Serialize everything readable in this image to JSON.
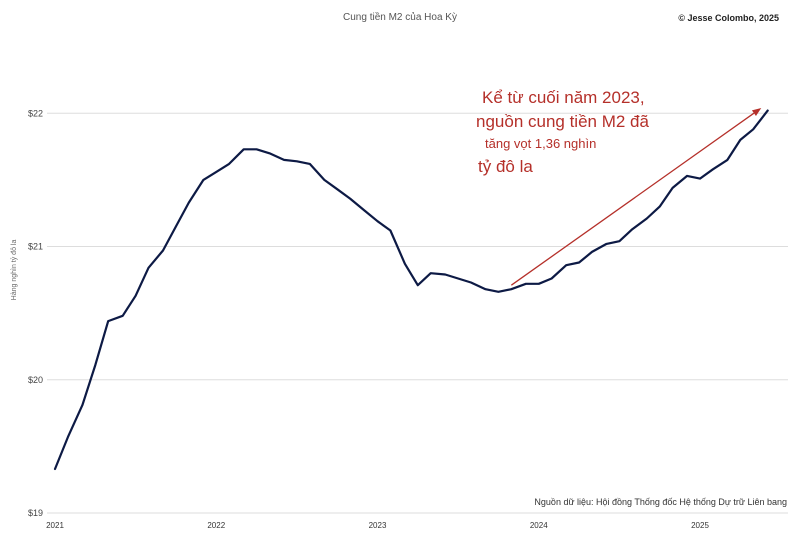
{
  "chart_data": {
    "type": "line",
    "title": "Cung tiền M2 của Hoa Kỳ",
    "credit": "© Jesse Colombo, 2025",
    "ylabel": "Hàng nghìn tỷ đô la",
    "source": "Nguồn dữ liệu: Hội đồng Thống đốc Hệ thống Dự trữ Liên bang",
    "ylim": [
      19,
      22.4
    ],
    "yticks": [
      19,
      20,
      21,
      22
    ],
    "ytick_labels": [
      "$19",
      "$20",
      "$21",
      "$22"
    ],
    "xticks": [
      2021,
      2022,
      2023,
      2024,
      2025
    ],
    "xtick_labels": [
      "2021",
      "2022",
      "2023",
      "2024",
      "2025"
    ],
    "xlim": [
      2021,
      2025.6
    ],
    "grid": true,
    "legend": "none",
    "line_color": "#0d1a45",
    "annotation_color": "#b5302a",
    "annotation": {
      "line1": "Kể từ cuối năm 2023,",
      "line2": "nguồn cung tiền M2 đã",
      "line3": "tăng vọt 1,36 nghìn",
      "line4": "tỷ đô la",
      "arrow_from": [
        2023.83,
        20.71
      ],
      "arrow_to": [
        2025.38,
        22.04
      ]
    },
    "series": [
      {
        "x": [
          2021.0,
          2021.08,
          2021.17,
          2021.25,
          2021.33,
          2021.42,
          2021.5,
          2021.58,
          2021.67,
          2021.75,
          2021.83,
          2021.92,
          2022.0,
          2022.08,
          2022.17,
          2022.25,
          2022.33,
          2022.42,
          2022.5,
          2022.58,
          2022.67,
          2022.75,
          2022.83,
          2022.92,
          2023.0,
          2023.08,
          2023.17,
          2023.25,
          2023.33,
          2023.42,
          2023.5,
          2023.58,
          2023.67,
          2023.75,
          2023.83,
          2023.92,
          2024.0,
          2024.08,
          2024.17,
          2024.25,
          2024.33,
          2024.42,
          2024.5,
          2024.58,
          2024.67,
          2024.75,
          2024.83,
          2024.92,
          2025.0,
          2025.08,
          2025.17,
          2025.25,
          2025.33,
          2025.42
        ],
        "values": [
          19.33,
          19.57,
          19.81,
          20.11,
          20.44,
          20.48,
          20.63,
          20.84,
          20.97,
          21.15,
          21.33,
          21.5,
          21.56,
          21.62,
          21.73,
          21.73,
          21.7,
          21.65,
          21.64,
          21.62,
          21.5,
          21.43,
          21.36,
          21.27,
          21.19,
          21.12,
          20.87,
          20.71,
          20.8,
          20.79,
          20.76,
          20.73,
          20.68,
          20.66,
          20.68,
          20.72,
          20.72,
          20.76,
          20.86,
          20.88,
          20.96,
          21.02,
          21.04,
          21.13,
          21.21,
          21.3,
          21.44,
          21.53,
          21.51,
          21.58,
          21.65,
          21.8,
          21.88,
          22.02
        ]
      }
    ]
  }
}
